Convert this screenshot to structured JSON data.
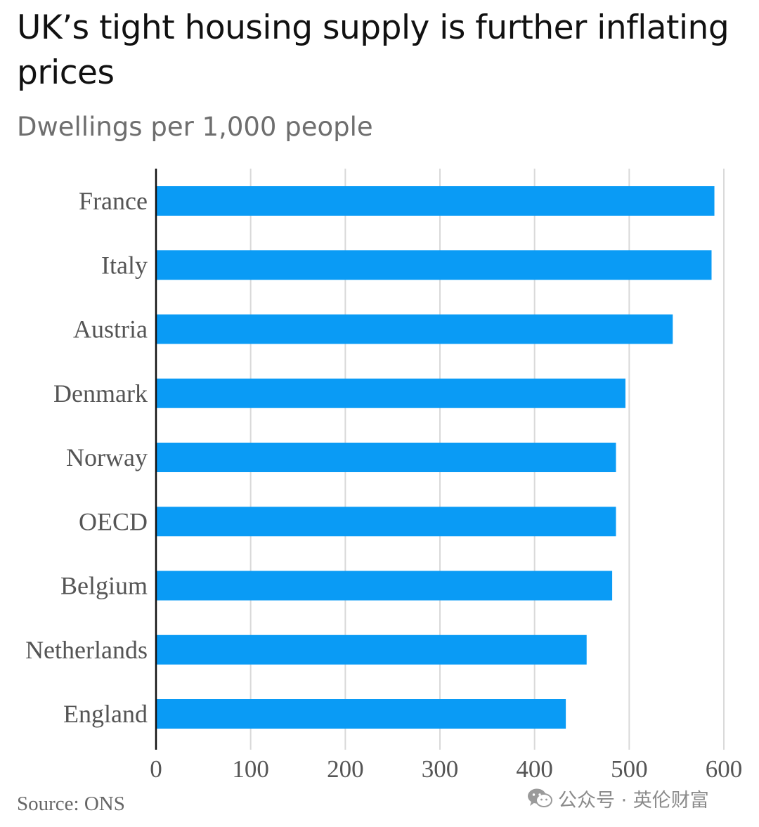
{
  "chart_data": {
    "type": "bar",
    "orientation": "horizontal",
    "title": "UK’s tight housing supply is further inflating prices",
    "subtitle": "Dwellings per 1,000 people",
    "categories": [
      "France",
      "Italy",
      "Austria",
      "Denmark",
      "Norway",
      "OECD",
      "Belgium",
      "Netherlands",
      "England"
    ],
    "values": [
      590,
      587,
      546,
      496,
      486,
      486,
      482,
      455,
      433
    ],
    "xlim": [
      0,
      600
    ],
    "xticks": [
      "0",
      "100",
      "200",
      "300",
      "400",
      "500",
      "600"
    ],
    "grid": true,
    "bar_color": "#0a9bf5",
    "source": "Source: ONS"
  },
  "watermark": {
    "icon": "wechat-icon",
    "text": "公众号 · 英伦财富"
  }
}
